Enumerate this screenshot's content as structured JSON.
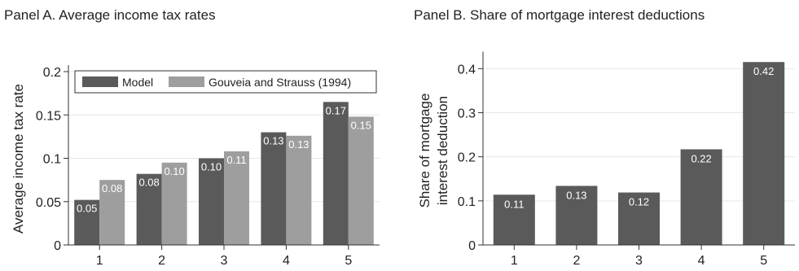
{
  "colors": {
    "model": "#5a5a5a",
    "reference": "#9e9e9e",
    "bar": "#5a5a5a",
    "axis": "#333333",
    "grid": "#e6e6e6",
    "label_text": "#ffffff"
  },
  "chart_data": [
    {
      "type": "bar",
      "title": "Panel A. Average income tax rates",
      "xlabel": "",
      "ylabel": "Average income tax rate",
      "categories": [
        "1",
        "2",
        "3",
        "4",
        "5"
      ],
      "ylim": [
        0,
        0.2
      ],
      "yticks": [
        0,
        0.05,
        0.1,
        0.15,
        0.2
      ],
      "ytick_labels": [
        "0",
        "0.05",
        "0.1",
        "0.15",
        "0.2"
      ],
      "grid": true,
      "legend_position": "top",
      "series": [
        {
          "name": "Model",
          "values": [
            0.052,
            0.082,
            0.1,
            0.13,
            0.165
          ],
          "labels": [
            "0.05",
            "0.08",
            "0.10",
            "0.13",
            "0.17"
          ]
        },
        {
          "name": "Gouveia and Strauss (1994)",
          "values": [
            0.075,
            0.095,
            0.108,
            0.126,
            0.148
          ],
          "labels": [
            "0.08",
            "0.10",
            "0.11",
            "0.13",
            "0.15"
          ]
        }
      ]
    },
    {
      "type": "bar",
      "title": "Panel B. Share of mortgage interest deductions",
      "xlabel": "",
      "ylabel_lines": [
        "Share of mortgage",
        "interest deduction"
      ],
      "categories": [
        "1",
        "2",
        "3",
        "4",
        "5"
      ],
      "ylim": [
        0,
        0.42
      ],
      "yticks": [
        0,
        0.1,
        0.2,
        0.3,
        0.4
      ],
      "ytick_labels": [
        "0",
        "0.1",
        "0.2",
        "0.3",
        "0.4"
      ],
      "grid": true,
      "series": [
        {
          "values": [
            0.114,
            0.134,
            0.119,
            0.217,
            0.415
          ],
          "labels": [
            "0.11",
            "0.13",
            "0.12",
            "0.22",
            "0.42"
          ]
        }
      ]
    }
  ]
}
